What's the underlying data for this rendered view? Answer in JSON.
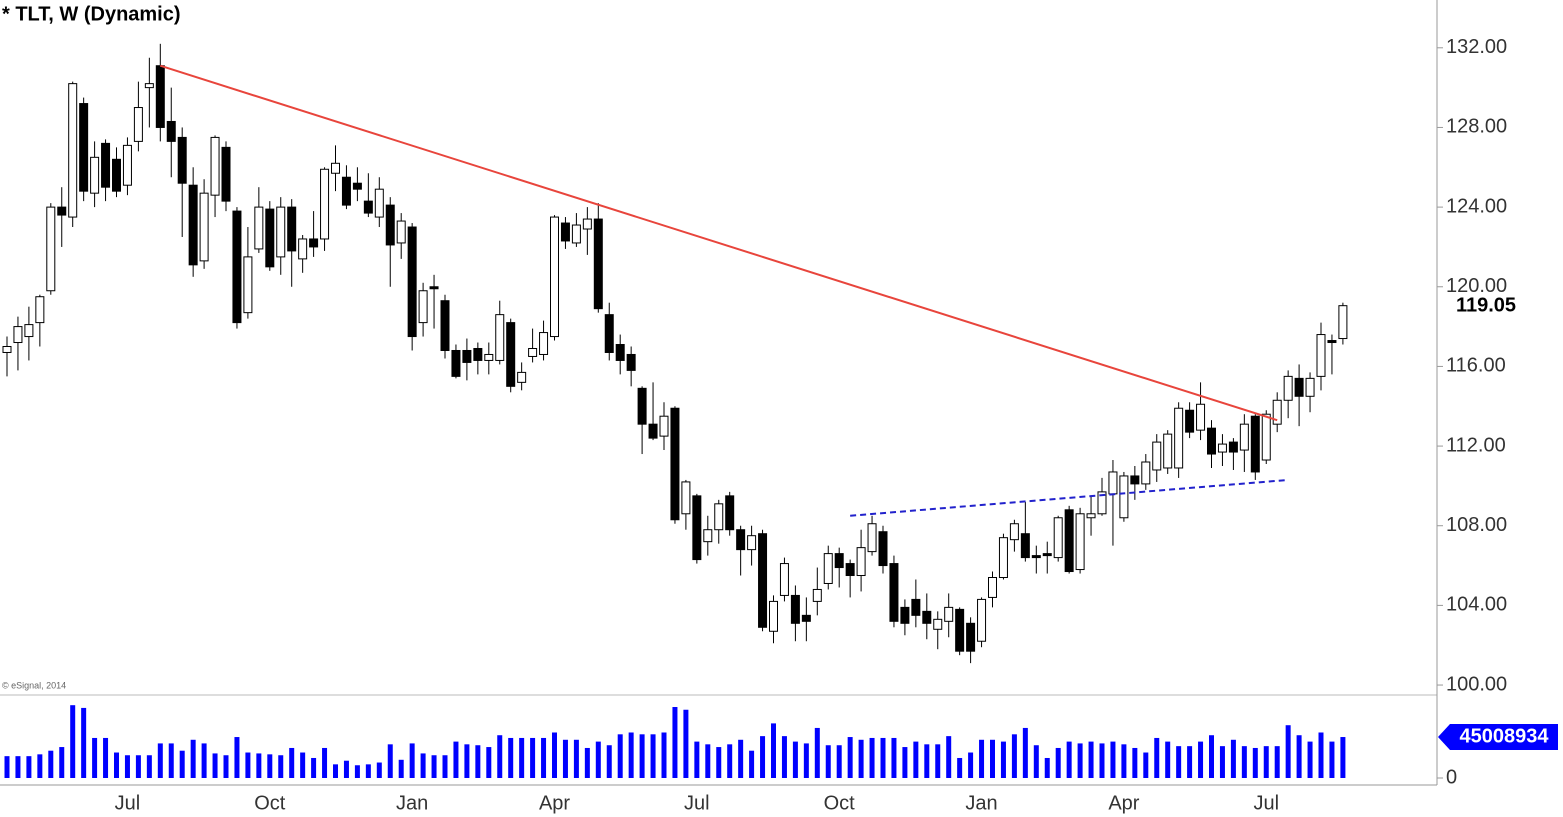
{
  "chart_data": [
    {
      "type": "candlestick",
      "title": "* TLT, W (Dynamic)",
      "copyright": "© eSignal, 2014",
      "categories": [
        null,
        null,
        null,
        null,
        null,
        null,
        null,
        null,
        null,
        null,
        null,
        "Jul",
        null,
        null,
        null,
        null,
        null,
        null,
        null,
        null,
        null,
        null,
        null,
        null,
        "Oct",
        null,
        null,
        null,
        null,
        null,
        null,
        null,
        null,
        null,
        null,
        null,
        null,
        "Jan",
        null,
        null,
        null,
        null,
        null,
        null,
        null,
        null,
        null,
        null,
        null,
        null,
        "Apr",
        null,
        null,
        null,
        null,
        null,
        null,
        null,
        null,
        null,
        null,
        null,
        null,
        "Jul",
        null,
        null,
        null,
        null,
        null,
        null,
        null,
        null,
        null,
        null,
        null,
        null,
        "Oct",
        null,
        null,
        null,
        null,
        null,
        null,
        null,
        null,
        null,
        null,
        null,
        null,
        "Jan",
        null,
        null,
        null,
        null,
        null,
        null,
        null,
        null,
        null,
        null,
        null,
        null,
        "Apr",
        null,
        null,
        null,
        null,
        null,
        null,
        null,
        null,
        null,
        null,
        null,
        null,
        "Jul",
        null,
        null,
        null,
        null,
        null,
        null,
        null
      ],
      "open": [
        116.7,
        117.2,
        117.5,
        118.2,
        119.8,
        124,
        123.5,
        129.2,
        124.7,
        127.2,
        126.4,
        125.1,
        127.3,
        130,
        131.1,
        128.3,
        127.5,
        125.1,
        121.3,
        124.6,
        127,
        123.8,
        118.7,
        121.9,
        123.9,
        121.5,
        124,
        121.4,
        122.4,
        122.4,
        125.7,
        125.5,
        125.2,
        124.3,
        123.5,
        124.1,
        122.2,
        123,
        118.2,
        120,
        119.3,
        116.8,
        116.8,
        116.9,
        116.3,
        116.3,
        118.2,
        115.2,
        116.5,
        116.6,
        117.5,
        123.2,
        122.2,
        122.9,
        123.4,
        118.6,
        117.1,
        116.6,
        114.9,
        113.1,
        112.5,
        113.9,
        108.6,
        109.5,
        107.2,
        107.8,
        109.5,
        107.8,
        106.8,
        107.6,
        102.7,
        104.5,
        104.5,
        103.5,
        104.2,
        105.1,
        106.6,
        106.1,
        105.5,
        106.7,
        107.7,
        106.1,
        103.9,
        104.3,
        103.7,
        102.8,
        103.2,
        103.8,
        103.1,
        102.2,
        104.4,
        105.4,
        107.3,
        107.6,
        106.5,
        106.6,
        106.4,
        108.8,
        105.8,
        108.4,
        108.6,
        109.6,
        108.4,
        110.5,
        110.1,
        110.8,
        110.9,
        110.9,
        113.8,
        112.8,
        112.9,
        111.7,
        112.2,
        111.8,
        113.5,
        111.3,
        113.1,
        114.3,
        115.4,
        114.5,
        115.5,
        117.3,
        117.4
      ],
      "high": [
        117.5,
        118.5,
        119,
        119.6,
        124.2,
        125,
        130.3,
        129.5,
        127.3,
        127.4,
        127,
        127.5,
        130.3,
        131.5,
        132.2,
        130,
        128,
        126,
        125.4,
        127.6,
        127.3,
        124,
        123,
        125,
        124.3,
        124.5,
        124.4,
        122.6,
        123.8,
        126,
        127.1,
        126.1,
        126,
        125.7,
        125.5,
        124.5,
        123.7,
        123.2,
        120.2,
        120.6,
        119.6,
        117.1,
        117.4,
        117.2,
        117.2,
        119.3,
        118.4,
        116.2,
        117.9,
        118.3,
        123.6,
        123.5,
        123.7,
        124,
        124.2,
        119.2,
        117.6,
        117,
        115,
        115.2,
        114.2,
        114,
        110.3,
        109.6,
        108.5,
        109.3,
        109.7,
        108,
        108,
        107.8,
        104.5,
        106.4,
        105,
        104.4,
        105.9,
        107,
        106.9,
        106.3,
        107.8,
        108.5,
        108,
        106.5,
        104.3,
        105.3,
        104.6,
        103.7,
        104.6,
        103.9,
        103.4,
        104.4,
        105.7,
        107.6,
        108.3,
        109.2,
        107,
        107.2,
        108.5,
        109,
        108.9,
        109.5,
        110.4,
        111.3,
        110.7,
        111,
        111.6,
        112.6,
        112.8,
        114.2,
        114.2,
        115.2,
        113.3,
        112.6,
        112.4,
        113.6,
        113.6,
        113.8,
        114.7,
        115.8,
        116.1,
        115.7,
        118.2,
        117.6,
        119.2
      ],
      "low": [
        115.5,
        115.8,
        116.3,
        117,
        119.6,
        122,
        123,
        124.3,
        124,
        124.3,
        124.5,
        124.6,
        126.8,
        128,
        127.3,
        125.5,
        122.5,
        120.5,
        120.9,
        123.5,
        123.8,
        117.9,
        118.4,
        121.7,
        120.8,
        120.6,
        120,
        120.7,
        121.5,
        121.8,
        124.8,
        123.9,
        124.3,
        123.5,
        123,
        120,
        121.4,
        116.8,
        117.5,
        117.9,
        116.4,
        115.4,
        115.3,
        115.6,
        115.6,
        116.1,
        114.7,
        114.8,
        116.2,
        116.3,
        117.3,
        121.9,
        122,
        121.6,
        118.7,
        116.3,
        115.6,
        115,
        111.6,
        112.3,
        111.8,
        108.1,
        107.8,
        106.1,
        106.5,
        107.1,
        107.5,
        105.5,
        106,
        102.7,
        102.1,
        104.2,
        102.2,
        102.2,
        103.5,
        104.8,
        104.9,
        104.4,
        104.7,
        106.5,
        105.6,
        102.9,
        102.5,
        102.9,
        102.3,
        101.8,
        102.4,
        101.5,
        101.1,
        101.9,
        103.9,
        105.3,
        106.7,
        106.2,
        105.6,
        105.6,
        106.2,
        105.6,
        105.6,
        107.5,
        108.5,
        107,
        108.2,
        109.3,
        109.8,
        110.2,
        110.6,
        110.4,
        112.4,
        112.3,
        110.9,
        111,
        110.8,
        110.7,
        110.3,
        111.1,
        112.7,
        113.4,
        113,
        113.7,
        114.8,
        115.6,
        117.1
      ],
      "close": [
        117.0,
        118.0,
        118.1,
        119.5,
        124.0,
        123.6,
        130.2,
        124.8,
        126.5,
        125.0,
        124.8,
        127.1,
        129.0,
        130.2,
        128.0,
        127.3,
        125.2,
        121.1,
        124.7,
        127.5,
        124.3,
        118.2,
        121.5,
        124.0,
        121.0,
        124.0,
        121.8,
        122.4,
        122.0,
        125.9,
        126.2,
        124.1,
        124.9,
        123.7,
        124.9,
        122.1,
        123.3,
        117.5,
        119.8,
        119.9,
        116.8,
        115.5,
        116.2,
        116.3,
        116.6,
        118.6,
        115.0,
        115.7,
        116.9,
        117.7,
        123.5,
        122.3,
        123.1,
        123.4,
        118.9,
        116.7,
        116.3,
        115.8,
        113.1,
        112.4,
        113.5,
        108.3,
        110.2,
        106.3,
        107.8,
        109.1,
        107.8,
        106.8,
        107.5,
        102.9,
        104.2,
        106.1,
        103.1,
        103.2,
        104.8,
        106.6,
        105.9,
        105.5,
        106.9,
        108.1,
        106.0,
        103.2,
        103.1,
        103.5,
        103.1,
        103.3,
        103.9,
        101.7,
        101.7,
        104.3,
        105.4,
        107.4,
        108.1,
        106.4,
        106.4,
        106.5,
        108.4,
        105.7,
        108.6,
        108.6,
        109.7,
        110.7,
        110.5,
        110.1,
        111.2,
        112.2,
        112.6,
        113.9,
        112.7,
        114.1,
        111.6,
        112.1,
        111.7,
        113.1,
        110.7,
        113.6,
        114.3,
        115.5,
        114.5,
        115.4,
        117.6,
        117.2,
        119.05
      ],
      "up_color": "#ffffff",
      "down_color": "#000000",
      "ylim": [
        99.5,
        134.4
      ],
      "yticks": [
        {
          "value": 100,
          "label": "100.00"
        },
        {
          "value": 104,
          "label": "104.00"
        },
        {
          "value": 108,
          "label": "108.00"
        },
        {
          "value": 112,
          "label": "112.00"
        },
        {
          "value": 116,
          "label": "116.00"
        },
        {
          "value": 120,
          "label": "120.00"
        },
        {
          "value": 124,
          "label": "124.00"
        },
        {
          "value": 128,
          "label": "128.00"
        },
        {
          "value": 132,
          "label": "132.00"
        }
      ],
      "lines": [
        {
          "color": "#e8453c",
          "dashed": false,
          "x": [
            14,
            116
          ],
          "y": [
            131.1,
            113.3
          ]
        },
        {
          "color": "#2222cc",
          "dashed": true,
          "x": [
            77,
            117
          ],
          "y": [
            108.5,
            110.3
          ]
        }
      ]
    },
    {
      "type": "bar",
      "color": "#0000ff",
      "values": [
        24000000,
        24000000,
        24000000,
        26000000,
        30000000,
        34000000,
        80000000,
        77000000,
        44000000,
        44000000,
        28000000,
        25000000,
        25000000,
        25000000,
        38000000,
        38000000,
        30000000,
        42000000,
        38000000,
        27000000,
        25000000,
        45000000,
        28000000,
        27000000,
        26000000,
        25000000,
        33000000,
        28000000,
        22000000,
        33000000,
        15000000,
        19000000,
        14000000,
        15000000,
        17000000,
        37000000,
        20000000,
        38000000,
        27000000,
        25000000,
        25000000,
        40000000,
        37000000,
        36000000,
        34000000,
        47000000,
        44000000,
        44000000,
        44000000,
        44000000,
        50000000,
        42000000,
        42000000,
        33000000,
        40000000,
        36000000,
        48000000,
        50000000,
        48000000,
        48000000,
        50000000,
        78000000,
        75000000,
        40000000,
        37000000,
        34000000,
        37000000,
        42000000,
        30000000,
        46000000,
        60000000,
        46000000,
        40000000,
        38000000,
        55000000,
        36000000,
        36000000,
        45000000,
        42000000,
        44000000,
        44000000,
        44000000,
        34000000,
        40000000,
        37000000,
        37000000,
        46000000,
        22000000,
        28000000,
        42000000,
        42000000,
        40000000,
        48000000,
        55000000,
        36000000,
        22000000,
        33000000,
        40000000,
        38000000,
        40000000,
        38000000,
        40000000,
        37000000,
        33000000,
        28000000,
        44000000,
        40000000,
        35000000,
        35000000,
        40000000,
        47000000,
        35000000,
        42000000,
        35000000,
        33000000,
        35000000,
        35000000,
        58000000,
        47000000,
        40000000,
        50000000,
        40000000,
        45008934
      ],
      "ylim": [
        0,
        89000000
      ],
      "yticks": [
        0
      ]
    }
  ]
}
